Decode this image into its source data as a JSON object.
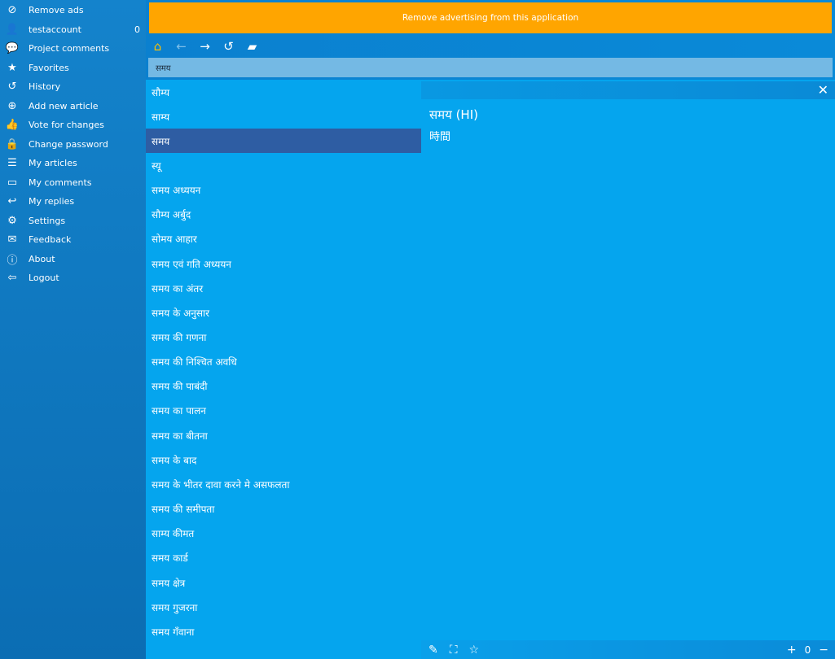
{
  "sidebar": {
    "items": [
      {
        "icon": "block-icon",
        "glyph": "⊘",
        "label": "Remove ads"
      },
      {
        "icon": "user-icon",
        "glyph": "👤",
        "label": "testaccount",
        "count": "0"
      },
      {
        "icon": "comments-icon",
        "glyph": "💬",
        "label": "Project comments"
      },
      {
        "icon": "favorites-folder-icon",
        "glyph": "★",
        "label": "Favorites"
      },
      {
        "icon": "history-icon",
        "glyph": "↺",
        "label": "History"
      },
      {
        "icon": "add-circle-icon",
        "glyph": "⊕",
        "label": "Add new article"
      },
      {
        "icon": "vote-icon",
        "glyph": "👍",
        "label": "Vote for changes"
      },
      {
        "icon": "lock-icon",
        "glyph": "🔒",
        "label": "Change password"
      },
      {
        "icon": "list-icon",
        "glyph": "☰",
        "label": "My articles"
      },
      {
        "icon": "comment-icon",
        "glyph": "▭",
        "label": "My comments"
      },
      {
        "icon": "reply-icon",
        "glyph": "↩",
        "label": "My replies"
      },
      {
        "icon": "gear-icon",
        "glyph": "⚙",
        "label": "Settings"
      },
      {
        "icon": "mail-icon",
        "glyph": "✉",
        "label": "Feedback"
      },
      {
        "icon": "info-icon",
        "glyph": "ⓘ",
        "label": "About"
      },
      {
        "icon": "logout-icon",
        "glyph": "⇦",
        "label": "Logout"
      }
    ]
  },
  "ad": {
    "text": "Remove advertising from this application",
    "color": "#ffa500"
  },
  "toolbar": [
    {
      "icon": "home-icon",
      "glyph": "⌂",
      "color": "#ffc000"
    },
    {
      "icon": "back-arrow-icon",
      "glyph": "←",
      "color": "#7fbfea"
    },
    {
      "icon": "forward-arrow-icon",
      "glyph": "→",
      "color": "#ffffff"
    },
    {
      "icon": "history-icon",
      "glyph": "↺",
      "color": "#ffffff"
    },
    {
      "icon": "favorites-folder-icon",
      "glyph": "▰",
      "color": "#ffffff"
    }
  ],
  "search": {
    "value": "समय"
  },
  "list": {
    "selected_index": 2,
    "items": [
      "सौम्य",
      "साम्य",
      "समय",
      "स्यू",
      "समय अध्ययन",
      "सौम्य अर्बुद",
      "सोमय आहार",
      "समय एवं गति अध्ययन",
      "समय का अंतर",
      "समय के अनुसार",
      "समय की गणना",
      "समय की निश्चित अवधि",
      "समय की पाबंदी",
      "समय का पालन",
      "समय का बीतना",
      "समय के बाद",
      "समय के भीतर दावा करने मे असफलता",
      "समय की समीपता",
      "साम्य कीमत",
      "समय कार्ड",
      "समय क्षेत्र",
      "समय गुजरना",
      "समय गँवाना"
    ]
  },
  "detail": {
    "title": "समय (HI)",
    "translation": "時間",
    "rating": "0"
  },
  "colors": {
    "selected": "#2e5da3",
    "list_bg": "#05a5ee"
  }
}
